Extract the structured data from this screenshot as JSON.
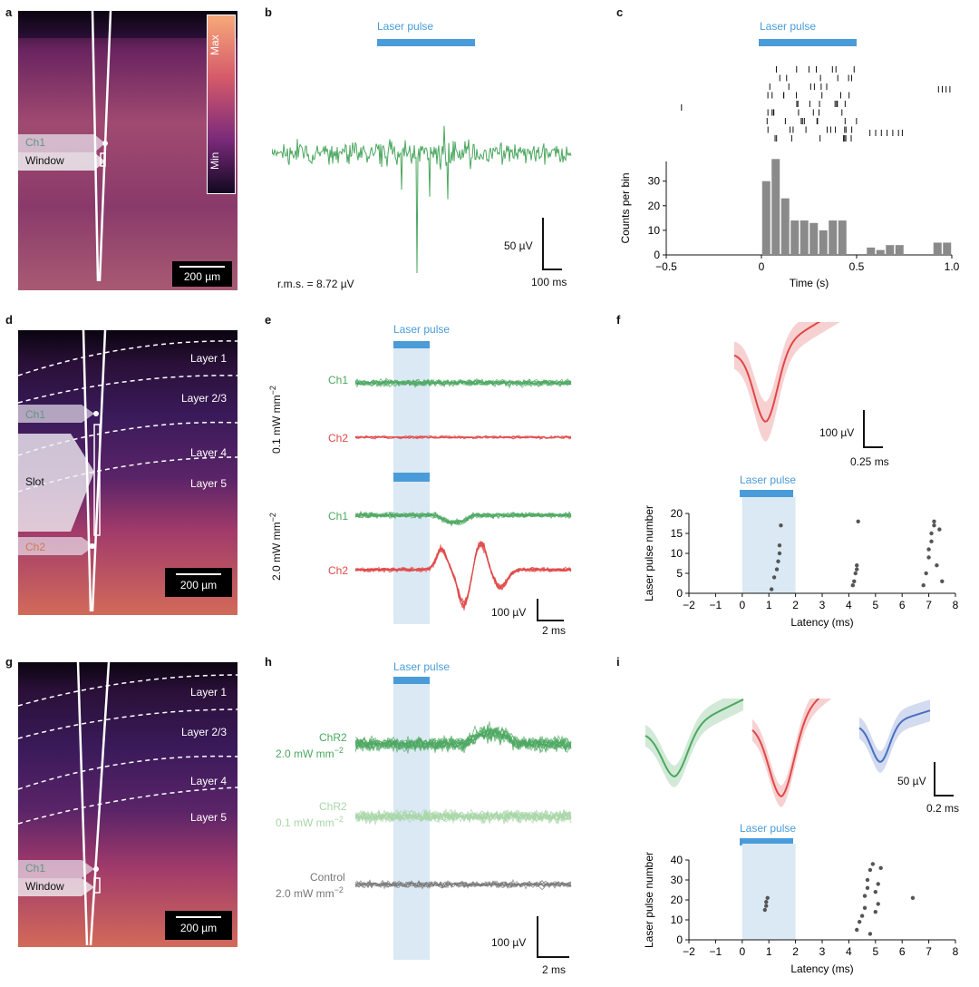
{
  "labels": {
    "a": "a",
    "b": "b",
    "c": "c",
    "d": "d",
    "e": "e",
    "f": "f",
    "g": "g",
    "h": "h",
    "i": "i"
  },
  "common": {
    "laser_pulse": "Laser pulse",
    "scale_200um": "200 µm",
    "ms100": "100 ms",
    "ms2": "2 ms",
    "ms025": "0.25 ms",
    "ms02": "0.2 ms",
    "uv50": "50 µV",
    "uv100": "100 µV"
  },
  "a": {
    "ch1": "Ch1",
    "window": "Window",
    "colorbar_max": "Max",
    "colorbar_min": "Min"
  },
  "b": {
    "rms": "r.m.s. = 8.72 µV"
  },
  "c": {
    "ylabel": "Counts per bin",
    "xlabel": "Time (s)",
    "xticks": [
      "−0.5",
      "0",
      "0.5",
      "1.0"
    ],
    "yticks": [
      "0",
      "10",
      "20",
      "30"
    ],
    "chart_data": {
      "type": "bar",
      "x": [
        0.025,
        0.075,
        0.125,
        0.175,
        0.225,
        0.275,
        0.325,
        0.375,
        0.425,
        0.475,
        0.575,
        0.625,
        0.675,
        0.725,
        0.925,
        0.975
      ],
      "values": [
        30,
        39,
        23,
        14,
        14,
        13,
        10,
        14,
        14,
        0,
        3,
        2,
        4,
        4,
        5,
        5
      ],
      "xlim": [
        -0.5,
        1.0
      ],
      "ylim": [
        0,
        38
      ]
    }
  },
  "d": {
    "layers": [
      "Layer 1",
      "Layer 2/3",
      "Layer 4",
      "Layer 5"
    ],
    "ch1": "Ch1",
    "slot": "Slot",
    "ch2": "Ch2"
  },
  "e": {
    "ch1": "Ch1",
    "ch2": "Ch2",
    "low_power": "0.1 mW mm",
    "high_power": "2.0 mW mm",
    "sup": "−2"
  },
  "f": {
    "ylabel": "Laser pulse number",
    "xlabel": "Latency (ms)",
    "xticks": [
      "−2",
      "−1",
      "0",
      "1",
      "2",
      "3",
      "4",
      "5",
      "6",
      "7",
      "8"
    ],
    "yticks": [
      "0",
      "5",
      "10",
      "15",
      "20"
    ],
    "chart_data": {
      "type": "scatter",
      "x": [
        1.1,
        1.2,
        1.3,
        1.35,
        1.4,
        1.4,
        1.45,
        4.15,
        4.2,
        4.25,
        4.3,
        4.3,
        4.35,
        6.8,
        6.9,
        7.0,
        7.0,
        7.1,
        7.1,
        7.2,
        7.2,
        7.3,
        7.4,
        7.5
      ],
      "y": [
        1,
        4,
        6,
        8,
        10,
        12,
        17,
        2,
        3,
        5,
        6,
        7,
        18,
        2,
        5,
        9,
        11,
        13,
        15,
        17,
        18,
        7,
        16,
        3
      ],
      "xlim": [
        -2,
        8
      ],
      "ylim": [
        0,
        20
      ]
    }
  },
  "g": {
    "layers": [
      "Layer 1",
      "Layer 2/3",
      "Layer 4",
      "Layer 5"
    ],
    "ch1": "Ch1",
    "window": "Window"
  },
  "h": {
    "chr2_high": "ChR2",
    "chr2_high_power": "2.0 mW mm",
    "chr2_low": "ChR2",
    "chr2_low_power": "0.1 mW mm",
    "control": "Control",
    "control_power": "2.0 mW mm",
    "sup": "−2"
  },
  "i": {
    "ylabel": "Laser pulse number",
    "xlabel": "Latency (ms)",
    "xticks": [
      "−2",
      "−1",
      "0",
      "1",
      "2",
      "3",
      "4",
      "5",
      "6",
      "7",
      "8"
    ],
    "yticks": [
      "0",
      "10",
      "20",
      "30",
      "40"
    ],
    "chart_data": {
      "type": "scatter",
      "x": [
        0.85,
        0.9,
        0.9,
        0.95,
        4.3,
        4.4,
        4.5,
        4.6,
        4.6,
        4.7,
        4.7,
        4.8,
        4.8,
        4.9,
        5.0,
        5.0,
        5.1,
        5.1,
        5.2,
        6.4
      ],
      "y": [
        15,
        17,
        19,
        21,
        5,
        9,
        12,
        16,
        22,
        26,
        30,
        35,
        3,
        38,
        14,
        24,
        18,
        28,
        36,
        21
      ],
      "xlim": [
        -2,
        8
      ],
      "ylim": [
        0,
        40
      ]
    }
  },
  "colors": {
    "green": "#4ca860",
    "red": "#e04848",
    "blue": "#4a6fc0",
    "laser": "#4a9bd9",
    "gray": "#8a8a8a",
    "light_green": "#a8d6a8"
  }
}
